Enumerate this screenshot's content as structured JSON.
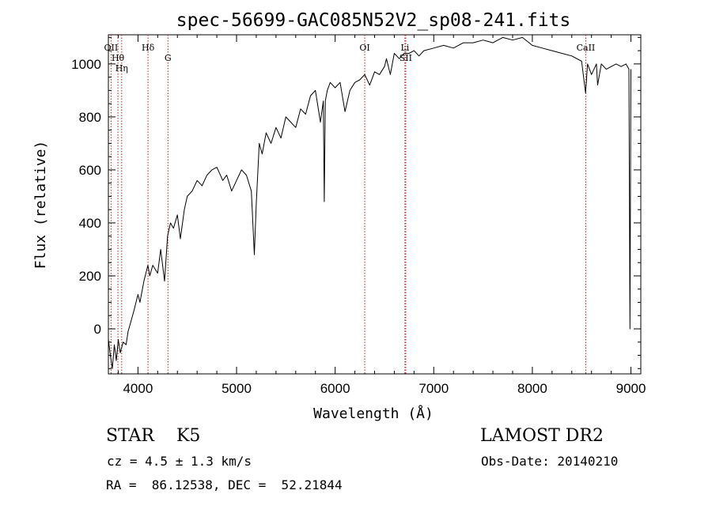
{
  "chart_data": {
    "type": "line",
    "title": "spec-56699-GAC085N52V2_sp08-241.fits",
    "xlabel": "Wavelength (Å)",
    "ylabel": "Flux (relative)",
    "xlim": [
      3700,
      9100
    ],
    "ylim": [
      -170,
      1110
    ],
    "x_ticks": [
      4000,
      5000,
      6000,
      7000,
      8000,
      9000
    ],
    "y_ticks": [
      0,
      200,
      400,
      600,
      800,
      1000
    ],
    "grid": false,
    "line_color": "#000000",
    "marker_color": "#b22222",
    "series": [
      {
        "x": [
          3700,
          3720,
          3740,
          3760,
          3780,
          3800,
          3820,
          3850,
          3880,
          3900,
          3930,
          3960,
          4000,
          4020,
          4060,
          4100,
          4120,
          4150,
          4200,
          4230,
          4270,
          4300,
          4330,
          4360,
          4400,
          4430,
          4470,
          4500,
          4550,
          4600,
          4650,
          4700,
          4750,
          4800,
          4860,
          4900,
          4950,
          5000,
          5050,
          5100,
          5150,
          5180,
          5200,
          5230,
          5260,
          5300,
          5350,
          5400,
          5450,
          5500,
          5550,
          5600,
          5650,
          5700,
          5750,
          5800,
          5850,
          5880,
          5890,
          5900,
          5920,
          5950,
          6000,
          6050,
          6100,
          6150,
          6200,
          6250,
          6300,
          6350,
          6400,
          6450,
          6500,
          6520,
          6560,
          6600,
          6650,
          6700,
          6750,
          6800,
          6850,
          6900,
          7000,
          7100,
          7200,
          7300,
          7400,
          7500,
          7600,
          7700,
          7800,
          7900,
          8000,
          8100,
          8200,
          8300,
          8400,
          8500,
          8540,
          8560,
          8600,
          8650,
          8662,
          8700,
          8750,
          8800,
          8850,
          8900,
          8950,
          8980,
          8990,
          9000
        ],
        "y": [
          -40,
          -100,
          -150,
          -60,
          -120,
          -40,
          -90,
          -50,
          -60,
          -10,
          30,
          70,
          130,
          100,
          180,
          240,
          200,
          240,
          210,
          300,
          180,
          350,
          400,
          380,
          430,
          340,
          450,
          500,
          520,
          560,
          540,
          580,
          600,
          610,
          560,
          580,
          520,
          560,
          600,
          580,
          520,
          280,
          470,
          700,
          660,
          740,
          700,
          760,
          720,
          800,
          780,
          760,
          830,
          810,
          880,
          900,
          780,
          860,
          480,
          860,
          900,
          930,
          910,
          930,
          820,
          900,
          930,
          940,
          960,
          920,
          970,
          960,
          990,
          1020,
          960,
          1040,
          1020,
          1040,
          1040,
          1050,
          1030,
          1050,
          1060,
          1070,
          1060,
          1080,
          1080,
          1090,
          1080,
          1100,
          1090,
          1100,
          1070,
          1060,
          1050,
          1040,
          1030,
          1010,
          890,
          1000,
          960,
          1000,
          920,
          1000,
          980,
          990,
          1000,
          990,
          1000,
          980,
          0,
          980
        ]
      }
    ],
    "line_markers": [
      {
        "label": "Hη",
        "x": 3835
      },
      {
        "label": "Hθ",
        "x": 3797
      },
      {
        "label": "OII",
        "x": 3727
      },
      {
        "label": "Hδ",
        "x": 4102
      },
      {
        "label": "G",
        "x": 4304
      },
      {
        "label": "OI",
        "x": 6300
      },
      {
        "label": "SII",
        "x": 6716
      },
      {
        "label": "Li",
        "x": 6708
      },
      {
        "label": "CaII",
        "x": 8542
      }
    ]
  },
  "info": {
    "object": "STAR    K5",
    "survey": "LAMOST DR2",
    "cz": "cz = 4.5 ± 1.3 km/s",
    "obs_date": "Obs-Date: 20140210",
    "coords": "RA =  86.12538, DEC =  52.21844"
  }
}
